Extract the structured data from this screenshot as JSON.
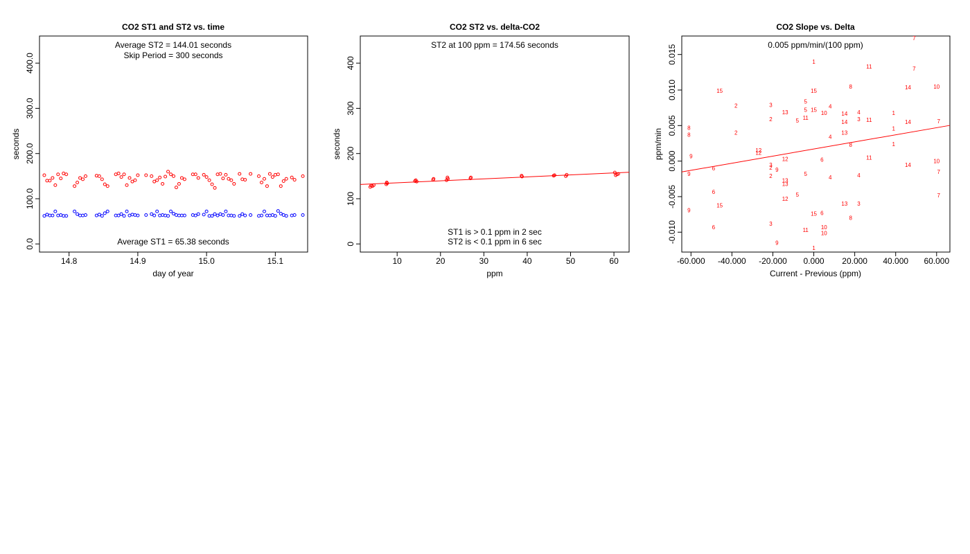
{
  "charts": [
    {
      "title": "CO2 ST1 and ST2 vs. time",
      "xlabel": "day of year",
      "ylabel": "seconds",
      "annotations": [
        "Average ST2 =  144.01  seconds",
        "Skip Period =  300  seconds",
        "Average ST1 =  65.38  seconds"
      ]
    },
    {
      "title": "CO2 ST2 vs. delta-CO2",
      "xlabel": "ppm",
      "ylabel": "seconds",
      "annotations": [
        "ST2 at 100 ppm =  174.56  seconds",
        "ST1 is > 0.1 ppm in 2 sec",
        "ST2 is < 0.1 ppm in 6 sec"
      ]
    },
    {
      "title": "CO2 Slope vs. Delta",
      "xlabel": "Current - Previous (ppm)",
      "ylabel": "ppm/min",
      "annotations": [
        "0.005  ppm/min/(100 ppm)"
      ]
    }
  ],
  "colors": {
    "st2": "#ff0000",
    "st1": "#0000ff",
    "fit": "#ff0000",
    "axis": "#000000"
  },
  "chart_data": [
    {
      "type": "scatter",
      "title": "CO2 ST1 and ST2 vs. time",
      "xlabel": "day of year",
      "ylabel": "seconds",
      "xlim": [
        14.757,
        15.147
      ],
      "ylim": [
        -18,
        460
      ],
      "xticks": [
        14.8,
        14.9,
        15.0,
        15.1
      ],
      "yticks": [
        0,
        100,
        200,
        300,
        400
      ],
      "x": [
        14.764,
        14.768,
        14.772,
        14.776,
        14.78,
        14.784,
        14.788,
        14.792,
        14.796,
        14.8,
        14.804,
        14.808,
        14.812,
        14.816,
        14.82,
        14.824,
        14.828,
        14.832,
        14.84,
        14.844,
        14.848,
        14.852,
        14.856,
        14.86,
        14.864,
        14.868,
        14.872,
        14.876,
        14.88,
        14.884,
        14.888,
        14.892,
        14.896,
        14.9,
        14.904,
        14.912,
        14.916,
        14.92,
        14.924,
        14.928,
        14.932,
        14.936,
        14.94,
        14.944,
        14.948,
        14.952,
        14.956,
        14.96,
        14.964,
        14.968,
        14.972,
        14.976,
        14.98,
        14.984,
        14.992,
        14.996,
        15.0,
        15.004,
        15.008,
        15.012,
        15.016,
        15.02,
        15.024,
        15.028,
        15.032,
        15.036,
        15.04,
        15.044,
        15.048,
        15.052,
        15.056,
        15.06,
        15.068,
        15.072,
        15.076,
        15.08,
        15.084,
        15.088,
        15.092,
        15.096,
        15.1,
        15.104,
        15.108,
        15.112,
        15.116,
        15.12,
        15.124,
        15.128,
        15.132,
        15.136,
        15.14
      ],
      "series": [
        {
          "name": "ST2",
          "values": [
            152,
            140,
            140,
            146,
            130,
            154,
            145,
            156,
            154,
            128,
            136,
            146,
            143,
            150,
            151,
            150,
            143,
            132,
            128,
            154,
            156,
            148,
            154,
            130,
            146,
            138,
            141,
            152,
            152,
            150,
            138,
            141,
            147,
            133,
            149,
            160,
            154,
            150,
            125,
            133,
            146,
            143,
            154,
            154,
            146,
            153,
            148,
            141,
            132,
            124,
            154,
            155,
            145,
            153,
            144,
            141,
            133,
            155,
            143,
            142,
            155,
            150,
            136,
            144,
            128,
            155,
            148,
            153,
            154,
            128,
            139,
            144,
            147,
            142,
            150
          ],
          "x": [
            14.764,
            14.768,
            14.772,
            14.776,
            14.78,
            14.784,
            14.788,
            14.792,
            14.796,
            14.808,
            14.812,
            14.816,
            14.82,
            14.824,
            14.84,
            14.844,
            14.848,
            14.852,
            14.856,
            14.868,
            14.872,
            14.876,
            14.88,
            14.884,
            14.888,
            14.892,
            14.896,
            14.9,
            14.912,
            14.92,
            14.924,
            14.928,
            14.932,
            14.936,
            14.94,
            14.944,
            14.948,
            14.952,
            14.956,
            14.96,
            14.964,
            14.968,
            14.98,
            14.984,
            14.988,
            14.996,
            15.0,
            15.004,
            15.008,
            15.012,
            15.016,
            15.02,
            15.024,
            15.028,
            15.032,
            15.036,
            15.04,
            15.048,
            15.052,
            15.056,
            15.064,
            15.076,
            15.08,
            15.084,
            15.088,
            15.092,
            15.096,
            15.1,
            15.104,
            15.108,
            15.112,
            15.116,
            15.124,
            15.128,
            15.14
          ]
        },
        {
          "name": "ST1",
          "values": [
            62,
            65,
            63,
            63,
            72,
            63,
            64,
            62,
            62,
            72,
            66,
            63,
            63,
            64,
            63,
            65,
            62,
            68,
            72,
            63,
            63,
            66,
            62,
            72,
            63,
            65,
            64,
            63,
            64,
            66,
            63,
            72,
            63,
            64,
            63,
            62,
            72,
            67,
            64,
            63,
            63,
            63,
            64,
            63,
            66,
            65,
            72,
            62,
            62,
            66,
            63,
            66,
            64,
            72,
            63,
            63,
            62,
            62,
            66,
            63,
            64,
            62,
            63,
            72,
            63,
            63,
            64,
            62,
            73,
            67,
            64,
            62,
            63,
            64,
            64
          ],
          "x": [
            14.764,
            14.768,
            14.772,
            14.776,
            14.78,
            14.784,
            14.788,
            14.792,
            14.796,
            14.808,
            14.812,
            14.816,
            14.82,
            14.824,
            14.84,
            14.844,
            14.848,
            14.852,
            14.856,
            14.868,
            14.872,
            14.876,
            14.88,
            14.884,
            14.888,
            14.892,
            14.896,
            14.9,
            14.912,
            14.92,
            14.924,
            14.928,
            14.932,
            14.936,
            14.94,
            14.944,
            14.948,
            14.952,
            14.956,
            14.96,
            14.964,
            14.968,
            14.98,
            14.984,
            14.988,
            14.996,
            15.0,
            15.004,
            15.008,
            15.012,
            15.016,
            15.02,
            15.024,
            15.028,
            15.032,
            15.036,
            15.04,
            15.048,
            15.052,
            15.056,
            15.064,
            15.076,
            15.08,
            15.084,
            15.088,
            15.092,
            15.096,
            15.1,
            15.104,
            15.108,
            15.112,
            15.116,
            15.124,
            15.128,
            15.14
          ]
        }
      ]
    },
    {
      "type": "scatter",
      "title": "CO2 ST2 vs. delta-CO2",
      "xlabel": "ppm",
      "ylabel": "seconds",
      "xlim": [
        1.5,
        63.5
      ],
      "ylim": [
        -18,
        460
      ],
      "xticks": [
        10,
        20,
        30,
        40,
        50,
        60
      ],
      "yticks": [
        0,
        100,
        200,
        300,
        400
      ],
      "x": [
        3.8,
        4.0,
        4.3,
        4.6,
        7.5,
        7.6,
        7.7,
        14.1,
        14.3,
        14.5,
        18.3,
        18.4,
        21.4,
        21.6,
        21.7,
        26.9,
        27.0,
        38.7,
        38.8,
        46.1,
        46.3,
        48.9,
        49.1,
        60.2,
        60.4,
        60.7,
        61.0
      ],
      "values": [
        126,
        129,
        128,
        130,
        132,
        136,
        134,
        139,
        141,
        138,
        142,
        144,
        141,
        147,
        144,
        145,
        147,
        151,
        149,
        151,
        152,
        150,
        153,
        158,
        152,
        154,
        155
      ],
      "fit": {
        "intercept": 130.9,
        "slope": 0.4366
      }
    },
    {
      "type": "scatter",
      "title": "CO2 Slope vs. Delta",
      "xlabel": "Current - Previous (ppm)",
      "ylabel": "ppm/min",
      "xlim": [
        -64.5,
        66.5
      ],
      "ylim": [
        -0.0128,
        0.0176
      ],
      "xticks": [
        -60,
        -40,
        -20,
        0,
        20,
        40,
        60
      ],
      "yticks": [
        -0.01,
        -0.005,
        0.0,
        0.005,
        0.01,
        0.015
      ],
      "fit": {
        "intercept": 0.0017,
        "slope": 5e-05
      },
      "points": [
        {
          "x": 49,
          "y": 0.0173,
          "label": "7"
        },
        {
          "x": 0,
          "y": 0.014,
          "label": "1"
        },
        {
          "x": 27,
          "y": 0.0133,
          "label": "11"
        },
        {
          "x": 49,
          "y": 0.013,
          "label": "7"
        },
        {
          "x": 18,
          "y": 0.0105,
          "label": "8"
        },
        {
          "x": 46,
          "y": 0.0104,
          "label": "14"
        },
        {
          "x": 60,
          "y": 0.0105,
          "label": "10"
        },
        {
          "x": -46,
          "y": 0.0099,
          "label": "15"
        },
        {
          "x": 0,
          "y": 0.0099,
          "label": "15"
        },
        {
          "x": -4,
          "y": 0.0084,
          "label": "5"
        },
        {
          "x": -38,
          "y": 0.0078,
          "label": "2"
        },
        {
          "x": -21,
          "y": 0.0079,
          "label": "3"
        },
        {
          "x": 8,
          "y": 0.0077,
          "label": "4"
        },
        {
          "x": -4,
          "y": 0.0072,
          "label": "5"
        },
        {
          "x": 0,
          "y": 0.0072,
          "label": "15"
        },
        {
          "x": -14,
          "y": 0.0069,
          "label": "13"
        },
        {
          "x": 5,
          "y": 0.0068,
          "label": "10"
        },
        {
          "x": 22,
          "y": 0.0069,
          "label": "4"
        },
        {
          "x": 39,
          "y": 0.0068,
          "label": "1"
        },
        {
          "x": 15,
          "y": 0.0067,
          "label": "14"
        },
        {
          "x": -21,
          "y": 0.0059,
          "label": "2"
        },
        {
          "x": -4,
          "y": 0.0061,
          "label": "11"
        },
        {
          "x": -8,
          "y": 0.0057,
          "label": "5"
        },
        {
          "x": 22,
          "y": 0.0059,
          "label": "3"
        },
        {
          "x": 27,
          "y": 0.0058,
          "label": "11"
        },
        {
          "x": 15,
          "y": 0.0055,
          "label": "14"
        },
        {
          "x": 46,
          "y": 0.0055,
          "label": "14"
        },
        {
          "x": 61,
          "y": 0.0056,
          "label": "7"
        },
        {
          "x": -61,
          "y": 0.0047,
          "label": "8"
        },
        {
          "x": 39,
          "y": 0.0046,
          "label": "1"
        },
        {
          "x": -38,
          "y": 0.004,
          "label": "2"
        },
        {
          "x": -61,
          "y": 0.0037,
          "label": "8"
        },
        {
          "x": 15,
          "y": 0.004,
          "label": "13"
        },
        {
          "x": 8,
          "y": 0.0034,
          "label": "4"
        },
        {
          "x": 18,
          "y": 0.0023,
          "label": "8"
        },
        {
          "x": 39,
          "y": 0.0024,
          "label": "1"
        },
        {
          "x": -27,
          "y": 0.0015,
          "label": "12"
        },
        {
          "x": -27,
          "y": 0.0012,
          "label": "12"
        },
        {
          "x": -60,
          "y": 0.0007,
          "label": "9"
        },
        {
          "x": -14,
          "y": 0.0003,
          "label": "12"
        },
        {
          "x": 4,
          "y": 0.0002,
          "label": "6"
        },
        {
          "x": 27,
          "y": 0.0005,
          "label": "11"
        },
        {
          "x": 60,
          "y": 0.0,
          "label": "10"
        },
        {
          "x": 46,
          "y": -0.0005,
          "label": "14"
        },
        {
          "x": -21,
          "y": -0.0005,
          "label": "3"
        },
        {
          "x": -21,
          "y": -0.0009,
          "label": "2"
        },
        {
          "x": -49,
          "y": -0.001,
          "label": "6"
        },
        {
          "x": -18,
          "y": -0.0012,
          "label": "9"
        },
        {
          "x": 61,
          "y": -0.0015,
          "label": "7"
        },
        {
          "x": -61,
          "y": -0.0018,
          "label": "9"
        },
        {
          "x": -4,
          "y": -0.0018,
          "label": "5"
        },
        {
          "x": -21,
          "y": -0.0021,
          "label": "2"
        },
        {
          "x": 22,
          "y": -0.002,
          "label": "4"
        },
        {
          "x": 8,
          "y": -0.0023,
          "label": "4"
        },
        {
          "x": -14,
          "y": -0.0027,
          "label": "13"
        },
        {
          "x": -14,
          "y": -0.0032,
          "label": "13"
        },
        {
          "x": -49,
          "y": -0.0043,
          "label": "6"
        },
        {
          "x": -8,
          "y": -0.0047,
          "label": "5"
        },
        {
          "x": 61,
          "y": -0.0048,
          "label": "7"
        },
        {
          "x": -14,
          "y": -0.0053,
          "label": "12"
        },
        {
          "x": -46,
          "y": -0.0062,
          "label": "15"
        },
        {
          "x": 15,
          "y": -0.006,
          "label": "13"
        },
        {
          "x": 22,
          "y": -0.006,
          "label": "3"
        },
        {
          "x": -61,
          "y": -0.0069,
          "label": "9"
        },
        {
          "x": 0,
          "y": -0.0074,
          "label": "15"
        },
        {
          "x": 4,
          "y": -0.0073,
          "label": "6"
        },
        {
          "x": 18,
          "y": -0.008,
          "label": "8"
        },
        {
          "x": -21,
          "y": -0.0088,
          "label": "3"
        },
        {
          "x": -49,
          "y": -0.0093,
          "label": "6"
        },
        {
          "x": 5,
          "y": -0.0093,
          "label": "10"
        },
        {
          "x": -4,
          "y": -0.0097,
          "label": "11"
        },
        {
          "x": 5,
          "y": -0.0101,
          "label": "10"
        },
        {
          "x": -18,
          "y": -0.0115,
          "label": "9"
        },
        {
          "x": 0,
          "y": -0.0122,
          "label": "1"
        }
      ]
    }
  ]
}
